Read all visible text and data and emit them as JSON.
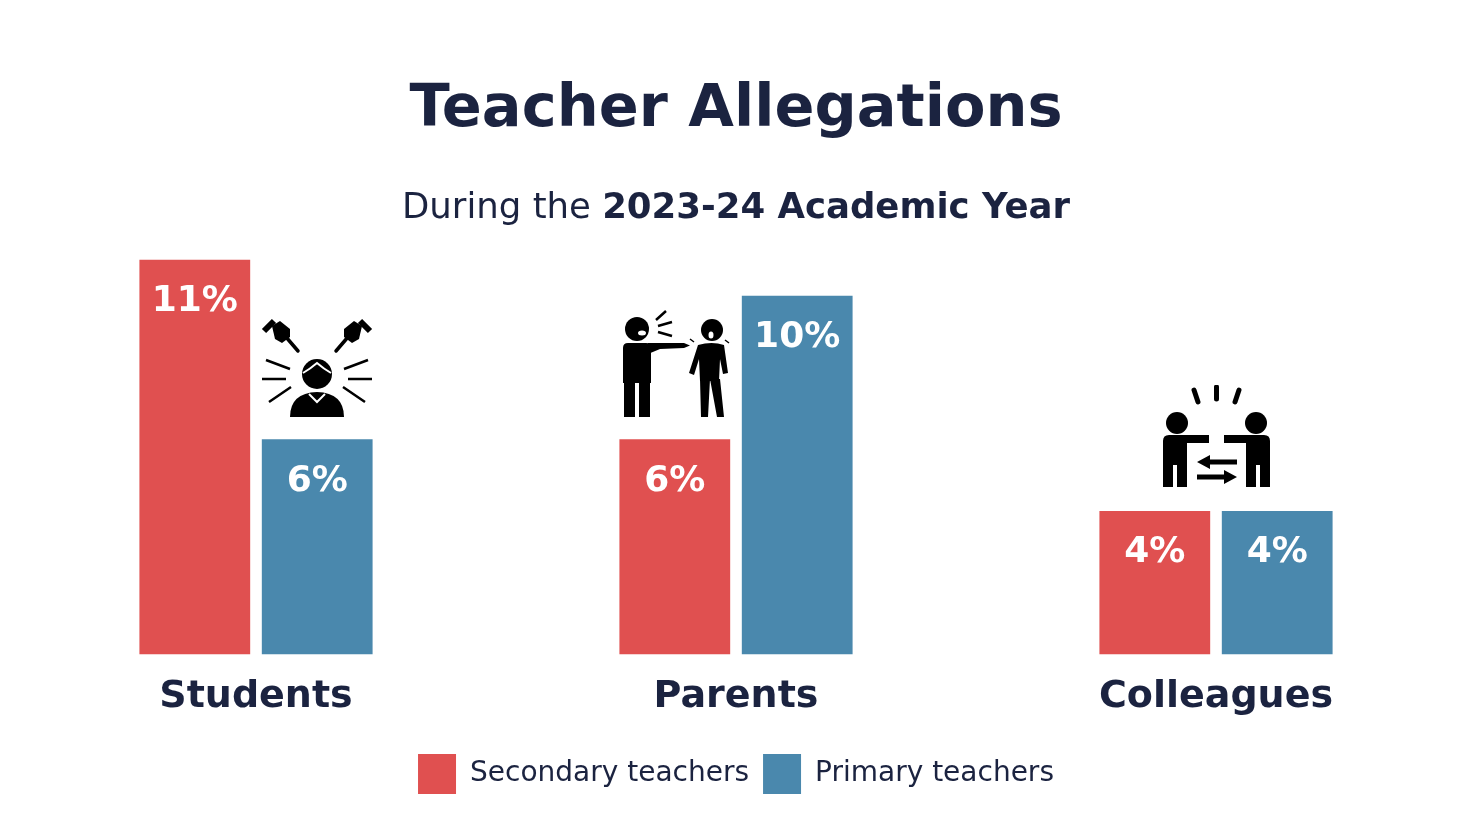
{
  "chart_data": {
    "type": "bar",
    "title": "Teacher Allegations",
    "subtitle": "During the 2023-24 Academic Year",
    "categories": [
      "Students",
      "Parents",
      "Colleagues"
    ],
    "series": [
      {
        "name": "Secondary teachers",
        "color": "#e05050",
        "values": [
          11,
          6,
          4
        ],
        "value_labels": [
          "11%",
          "6%",
          "4%"
        ]
      },
      {
        "name": "Primary teachers",
        "color": "#4a88ad",
        "values": [
          6,
          10,
          4
        ],
        "value_labels": [
          "6%",
          "10%",
          "4%"
        ]
      }
    ],
    "legend": "bottom",
    "tick_labels": "x"
  }
}
